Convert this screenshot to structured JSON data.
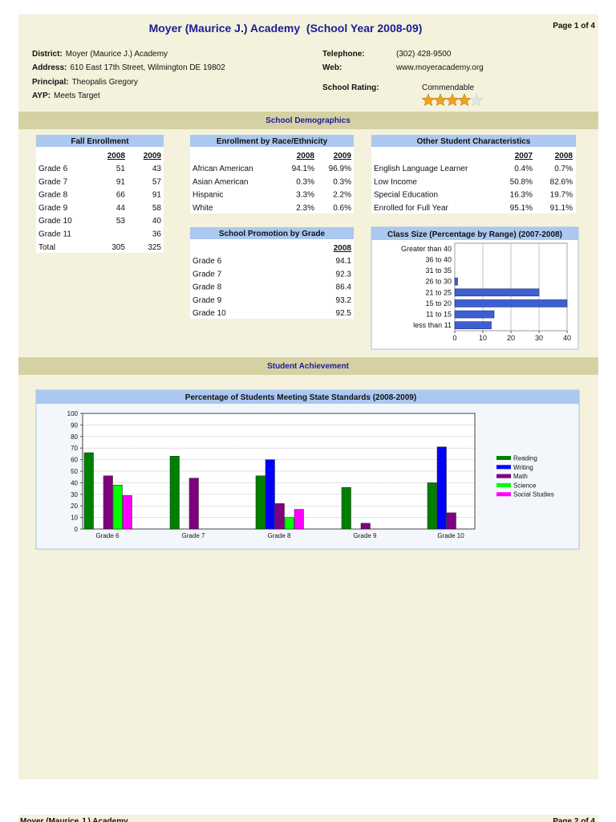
{
  "header": {
    "title": "Moyer (Maurice J.) Academy  (School Year 2008-09)",
    "page": "Page 1 of 4",
    "left_fields": [
      {
        "label": "District:",
        "value": "Moyer (Maurice J.) Academy"
      },
      {
        "label": "Address:",
        "value": "610 East 17th Street, Wilmington DE 19802"
      },
      {
        "label": "Principal:",
        "value": "Theopalis Gregory"
      },
      {
        "label": "AYP:",
        "value": "Meets Target"
      }
    ],
    "right_fields": [
      {
        "label": "Telephone:",
        "value": "(302) 428-9500"
      },
      {
        "label": "Web:",
        "value": "www.moyeracademy.org"
      },
      {
        "label": "School Rating:",
        "value": "Commendable"
      }
    ],
    "rating_stars": 4,
    "rating_max": 5
  },
  "sections": [
    "School Demographics",
    "Student Achievement"
  ],
  "tables": {
    "fall_enrollment": {
      "title": "Fall Enrollment",
      "columns": [
        "2008",
        "2009"
      ],
      "rows": [
        {
          "label": "Grade 6",
          "values": [
            51,
            43
          ]
        },
        {
          "label": "Grade 7",
          "values": [
            91,
            57
          ]
        },
        {
          "label": "Grade 8",
          "values": [
            66,
            91
          ]
        },
        {
          "label": "Grade 9",
          "values": [
            44,
            58
          ]
        },
        {
          "label": "Grade 10",
          "values": [
            53,
            40
          ]
        },
        {
          "label": "Grade 11",
          "values": [
            null,
            36
          ]
        },
        {
          "label": "Total",
          "values": [
            305,
            325
          ]
        }
      ]
    },
    "race": {
      "title": "Enrollment by Race/Ethnicity",
      "columns": [
        "2008",
        "2009"
      ],
      "rows": [
        {
          "label": "African American",
          "values": [
            "94.1%",
            "96.9%"
          ]
        },
        {
          "label": "Asian American",
          "values": [
            "0.3%",
            "0.3%"
          ]
        },
        {
          "label": "Hispanic",
          "values": [
            "3.3%",
            "2.2%"
          ]
        },
        {
          "label": "White",
          "values": [
            "2.3%",
            "0.6%"
          ]
        }
      ]
    },
    "other": {
      "title": "Other Student Characteristics",
      "columns": [
        "2007",
        "2008"
      ],
      "rows": [
        {
          "label": "English Language Learner",
          "values": [
            "0.4%",
            "0.7%"
          ]
        },
        {
          "label": "Low Income",
          "values": [
            "50.8%",
            "82.6%"
          ]
        },
        {
          "label": "Special Education",
          "values": [
            "16.3%",
            "19.7%"
          ]
        },
        {
          "label": "Enrolled for Full Year",
          "values": [
            "95.1%",
            "91.1%"
          ]
        }
      ]
    },
    "promotion": {
      "title": "School Promotion by Grade",
      "columns": [
        "2008"
      ],
      "rows": [
        {
          "label": "Grade 6",
          "values": [
            94.1
          ]
        },
        {
          "label": "Grade 7",
          "values": [
            92.3
          ]
        },
        {
          "label": "Grade 8",
          "values": [
            86.4
          ]
        },
        {
          "label": "Grade 9",
          "values": [
            93.2
          ]
        },
        {
          "label": "Grade 10",
          "values": [
            92.5
          ]
        }
      ]
    }
  },
  "chart_data": [
    {
      "type": "hbar",
      "title": "Class Size (Percentage by Range) (2007-2008)",
      "categories": [
        "Greater than 40",
        "36 to 40",
        "31 to 35",
        "26 to 30",
        "21 to 25",
        "15 to 20",
        "11 to 15",
        "less than 11"
      ],
      "values": [
        0,
        0,
        0,
        1,
        30,
        40,
        14,
        13
      ],
      "color": "#3d5fd0",
      "xlim": [
        0,
        40
      ],
      "xticks": [
        0,
        10,
        20,
        30,
        40
      ],
      "grid": true
    },
    {
      "type": "bar",
      "title": "Percentage of Students Meeting State Standards (2008-2009)",
      "categories": [
        "Grade 6",
        "Grade 7",
        "Grade 8",
        "Grade 9",
        "Grade 10"
      ],
      "series": [
        {
          "name": "Reading",
          "color": "#008000",
          "values": [
            66,
            63,
            46,
            36,
            40
          ]
        },
        {
          "name": "Writing",
          "color": "#0000ff",
          "values": [
            null,
            null,
            60,
            null,
            71
          ]
        },
        {
          "name": "Math",
          "color": "#800080",
          "values": [
            46,
            44,
            22,
            5,
            14
          ]
        },
        {
          "name": "Science",
          "color": "#00ff00",
          "values": [
            38,
            null,
            10,
            null,
            null
          ]
        },
        {
          "name": "Social Studies",
          "color": "#ff00ff",
          "values": [
            29,
            null,
            17,
            null,
            null
          ]
        }
      ],
      "ylim": [
        0,
        100
      ],
      "yticks": [
        0,
        10,
        20,
        30,
        40,
        50,
        60,
        70,
        80,
        90,
        100
      ],
      "grid": true,
      "legend": "right"
    }
  ],
  "footer": {
    "title": "Moyer (Maurice J.) Academy",
    "page": "Page 2 of 4"
  }
}
